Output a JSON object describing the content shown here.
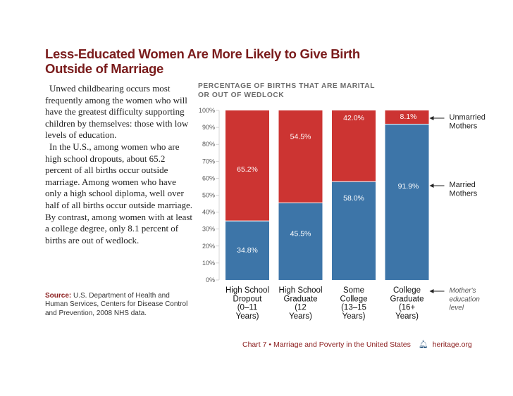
{
  "title_lines": [
    "Less-Educated Women Are More Likely to Give Birth",
    "Outside of Marriage"
  ],
  "body_paragraphs": [
    "Unwed childbearing occurs most frequently among the women who will have the greatest difficulty supporting children by themselves: those with low levels of education.",
    "In the U.S., among women who are high school dropouts, about 65.2 percent of all births occur outside marriage. Among women who have only a high school diploma, well over half of all births occur outside marriage. By contrast, among women with at least a college degree, only 8.1 percent of births are out of wedlock."
  ],
  "source": {
    "label": "Source:",
    "text": "U.S. Department of Health and Human Services, Centers for Disease Control and Prevention, 2008 NHS data."
  },
  "footer": {
    "chart_ref": "Chart 7 • Marriage and Poverty in the United States",
    "logo_icon": "liberty-bell-icon",
    "site": "heritage.org"
  },
  "colors": {
    "married": "#3d75a8",
    "unmarried": "#cc3432",
    "title": "#7a1c1c"
  },
  "chart_data": {
    "type": "bar",
    "stacked": true,
    "title": "PERCENTAGE OF BIRTHS THAT ARE MARITAL OR OUT OF WEDLOCK",
    "title_lines": [
      "PERCENTAGE OF BIRTHS THAT ARE MARITAL",
      "OR OUT OF WEDLOCK"
    ],
    "xlabel": "Mother's education level",
    "ylabel": "",
    "ylim": [
      0,
      100
    ],
    "yticks": [
      "0%",
      "10%",
      "20%",
      "30%",
      "40%",
      "50%",
      "60%",
      "70%",
      "80%",
      "90%",
      "100%"
    ],
    "categories": [
      [
        "High School",
        "Dropout",
        "(0–11",
        "Years)"
      ],
      [
        "High School",
        "Graduate",
        "(12",
        "Years)"
      ],
      [
        "Some",
        "College",
        "(13–15",
        "Years)"
      ],
      [
        "College",
        "Graduate",
        "(16+",
        "Years)"
      ]
    ],
    "series": [
      {
        "name": "Married Mothers",
        "legend_lines": [
          "Married",
          "Mothers"
        ],
        "values": [
          34.8,
          45.5,
          58.0,
          91.9
        ],
        "labels": [
          "34.8%",
          "45.5%",
          "58.0%",
          "91.9%"
        ]
      },
      {
        "name": "Unmarried Mothers",
        "legend_lines": [
          "Unmarried",
          "Mothers"
        ],
        "values": [
          65.2,
          54.5,
          42.0,
          8.1
        ],
        "labels": [
          "65.2%",
          "54.5%",
          "42.0%",
          "8.1%"
        ]
      }
    ],
    "axis_note_lines": [
      "Mother's",
      "education",
      "level"
    ],
    "legend_position": "right",
    "grid": false
  }
}
